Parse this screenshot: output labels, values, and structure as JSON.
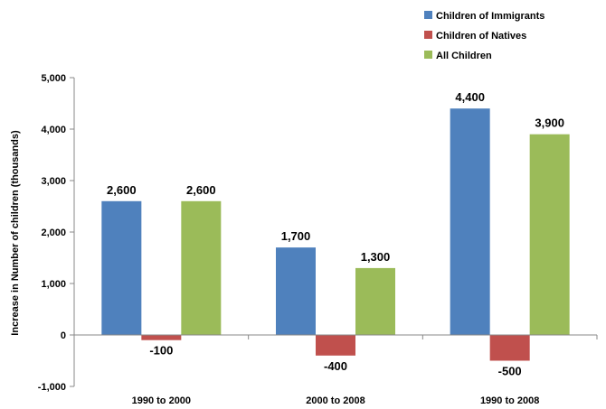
{
  "chart_data": {
    "type": "bar",
    "title": "",
    "xlabel": "",
    "ylabel": "Increase in Number of children (thousands)",
    "categories": [
      "1990 to 2000",
      "2000 to 2008",
      "1990 to 2008"
    ],
    "series": [
      {
        "name": "Children of Immigrants",
        "color": "#4f81bd",
        "values": [
          2600,
          1700,
          4400
        ],
        "labels": [
          "2,600",
          "1,700",
          "4,400"
        ]
      },
      {
        "name": "Children of Natives",
        "color": "#c0504d",
        "values": [
          -100,
          -400,
          -500
        ],
        "labels": [
          "-100",
          "-400",
          "-500"
        ]
      },
      {
        "name": "All Children",
        "color": "#9bbb59",
        "values": [
          2600,
          1300,
          3900
        ],
        "labels": [
          "2,600",
          "1,300",
          "3,900"
        ]
      }
    ],
    "ylim": [
      -1000,
      5000
    ],
    "yticks": [
      -1000,
      0,
      1000,
      2000,
      3000,
      4000,
      5000
    ],
    "ytick_labels": [
      "-1,000",
      "0",
      "1,000",
      "2,000",
      "3,000",
      "4,000",
      "5,000"
    ],
    "grid": false,
    "legend_position": "top-right"
  }
}
